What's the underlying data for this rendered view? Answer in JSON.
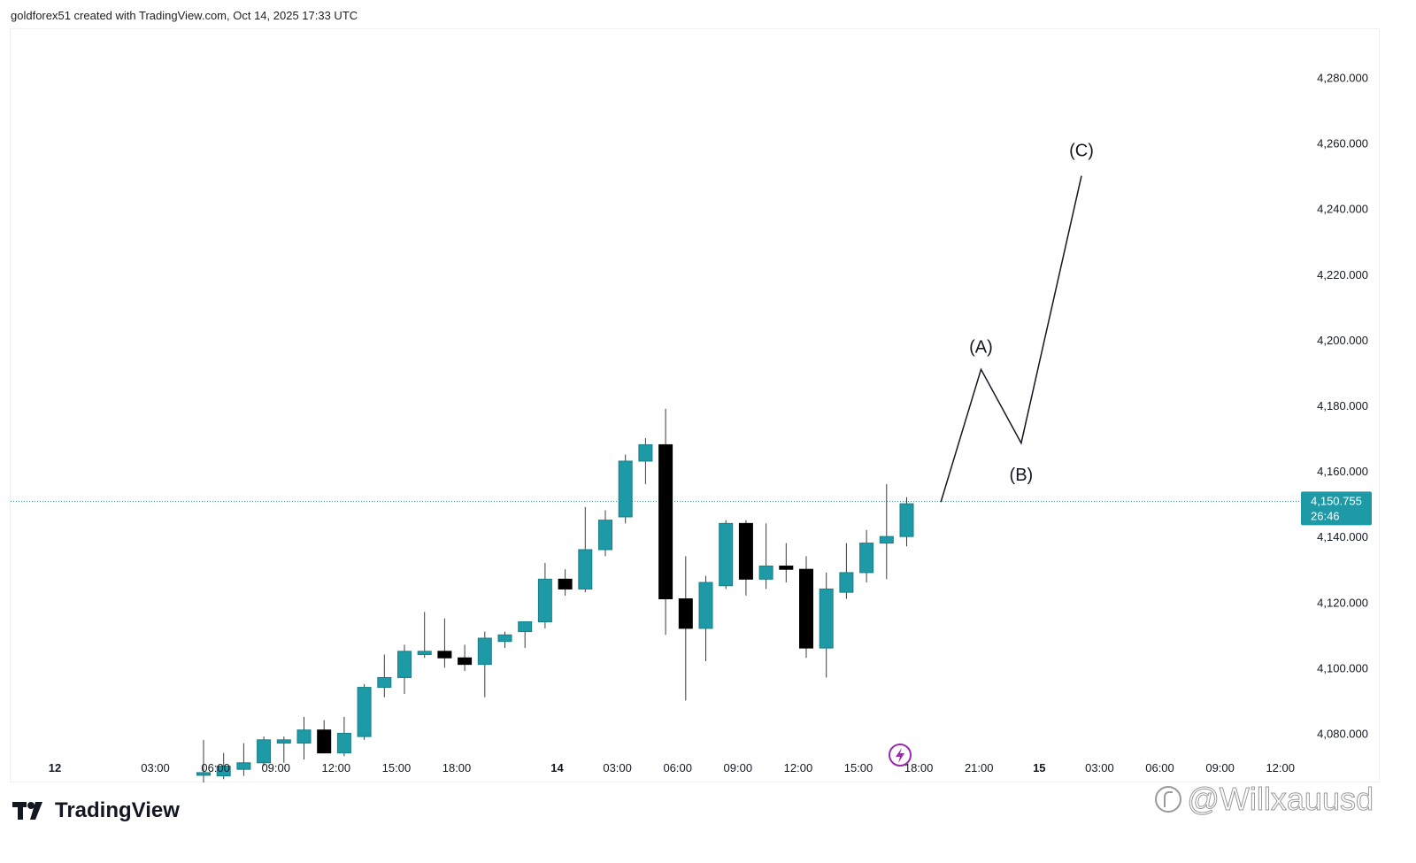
{
  "header": {
    "attribution": "goldforex51 created with TradingView.com, Oct 14, 2025 17:33 UTC"
  },
  "footer": {
    "brand": "TradingView",
    "watermark": "@Willxauusd"
  },
  "colors": {
    "bull": "#1e9aa6",
    "bear": "#000000",
    "wick": "#3c3c3c",
    "tag": "#1e9aa6",
    "event": "#9c27b0"
  },
  "chart_data": {
    "type": "candlestick",
    "price_axis": {
      "min": 4065,
      "max": 4295,
      "ticks": [
        4080,
        4100,
        4120,
        4140,
        4160,
        4180,
        4200,
        4220,
        4240,
        4260,
        4280
      ],
      "tick_labels": [
        "4,080.000",
        "4,100.000",
        "4,120.000",
        "4,140.000",
        "4,160.000",
        "4,180.000",
        "4,200.000",
        "4,220.000",
        "4,240.000",
        "4,260.000",
        "4,280.000"
      ]
    },
    "time_axis": {
      "labels": [
        {
          "text": "12",
          "slot": -7.4,
          "bold": true
        },
        {
          "text": "03:00",
          "slot": -2.4
        },
        {
          "text": "06:00",
          "slot": 0.6
        },
        {
          "text": "09:00",
          "slot": 3.6
        },
        {
          "text": "12:00",
          "slot": 6.6
        },
        {
          "text": "15:00",
          "slot": 9.6
        },
        {
          "text": "18:00",
          "slot": 12.6
        },
        {
          "text": "14",
          "slot": 17.6,
          "bold": true
        },
        {
          "text": "03:00",
          "slot": 20.6
        },
        {
          "text": "06:00",
          "slot": 23.6
        },
        {
          "text": "09:00",
          "slot": 26.6
        },
        {
          "text": "12:00",
          "slot": 29.6
        },
        {
          "text": "15:00",
          "slot": 32.6
        },
        {
          "text": "18:00",
          "slot": 35.6
        },
        {
          "text": "21:00",
          "slot": 38.6
        },
        {
          "text": "15",
          "slot": 41.6,
          "bold": true
        },
        {
          "text": "03:00",
          "slot": 44.6
        },
        {
          "text": "06:00",
          "slot": 47.6
        },
        {
          "text": "09:00",
          "slot": 50.6
        },
        {
          "text": "12:00",
          "slot": 53.6
        }
      ]
    },
    "candles": [
      {
        "o": 4068,
        "h": 4078,
        "l": 4065,
        "c": 4068
      },
      {
        "o": 4067,
        "h": 4074,
        "l": 4066,
        "c": 4070
      },
      {
        "o": 4069,
        "h": 4077,
        "l": 4067,
        "c": 4071
      },
      {
        "o": 4071,
        "h": 4079,
        "l": 4070,
        "c": 4078
      },
      {
        "o": 4077,
        "h": 4079,
        "l": 4071,
        "c": 4078
      },
      {
        "o": 4077,
        "h": 4085,
        "l": 4072,
        "c": 4081
      },
      {
        "o": 4081,
        "h": 4084,
        "l": 4074,
        "c": 4074
      },
      {
        "o": 4074,
        "h": 4085,
        "l": 4073,
        "c": 4080
      },
      {
        "o": 4079,
        "h": 4095,
        "l": 4078,
        "c": 4094
      },
      {
        "o": 4094,
        "h": 4104,
        "l": 4091,
        "c": 4097
      },
      {
        "o": 4097,
        "h": 4107,
        "l": 4092,
        "c": 4105
      },
      {
        "o": 4104,
        "h": 4117,
        "l": 4103,
        "c": 4105
      },
      {
        "o": 4105,
        "h": 4115,
        "l": 4100,
        "c": 4103
      },
      {
        "o": 4103,
        "h": 4107,
        "l": 4099,
        "c": 4101
      },
      {
        "o": 4101,
        "h": 4111,
        "l": 4091,
        "c": 4109
      },
      {
        "o": 4108,
        "h": 4111,
        "l": 4106,
        "c": 4110
      },
      {
        "o": 4111,
        "h": 4114,
        "l": 4106,
        "c": 4114
      },
      {
        "o": 4114,
        "h": 4132,
        "l": 4112,
        "c": 4127
      },
      {
        "o": 4127,
        "h": 4130,
        "l": 4122,
        "c": 4124
      },
      {
        "o": 4124,
        "h": 4149,
        "l": 4123,
        "c": 4136
      },
      {
        "o": 4136,
        "h": 4148,
        "l": 4134,
        "c": 4145
      },
      {
        "o": 4146,
        "h": 4165,
        "l": 4144,
        "c": 4163
      },
      {
        "o": 4163,
        "h": 4170,
        "l": 4156,
        "c": 4168
      },
      {
        "o": 4168,
        "h": 4179,
        "l": 4110,
        "c": 4121
      },
      {
        "o": 4121,
        "h": 4134,
        "l": 4090,
        "c": 4112
      },
      {
        "o": 4112,
        "h": 4128,
        "l": 4102,
        "c": 4126
      },
      {
        "o": 4125,
        "h": 4145,
        "l": 4124,
        "c": 4144
      },
      {
        "o": 4144,
        "h": 4145,
        "l": 4122,
        "c": 4127
      },
      {
        "o": 4127,
        "h": 4144,
        "l": 4124,
        "c": 4131
      },
      {
        "o": 4131,
        "h": 4138,
        "l": 4126,
        "c": 4130
      },
      {
        "o": 4130,
        "h": 4134,
        "l": 4103,
        "c": 4106
      },
      {
        "o": 4106,
        "h": 4129,
        "l": 4097,
        "c": 4124
      },
      {
        "o": 4123,
        "h": 4138,
        "l": 4121,
        "c": 4129
      },
      {
        "o": 4129,
        "h": 4142,
        "l": 4126,
        "c": 4138
      },
      {
        "o": 4138,
        "h": 4156,
        "l": 4127,
        "c": 4140
      },
      {
        "o": 4140,
        "h": 4152,
        "l": 4137,
        "c": 4150
      }
    ],
    "current_price": {
      "value": 4150.755,
      "label": "4,150.755",
      "countdown": "26:46"
    },
    "projection": {
      "points": [
        {
          "slot": 36.7,
          "price": 4150.5
        },
        {
          "slot": 38.7,
          "price": 4191
        },
        {
          "slot": 40.7,
          "price": 4168.5
        },
        {
          "slot": 43.7,
          "price": 4250
        }
      ],
      "labels": [
        {
          "text": "(A)",
          "slot": 38.7,
          "price": 4196
        },
        {
          "text": "(B)",
          "slot": 40.7,
          "price": 4157
        },
        {
          "text": "(C)",
          "slot": 43.7,
          "price": 4256
        }
      ]
    }
  }
}
